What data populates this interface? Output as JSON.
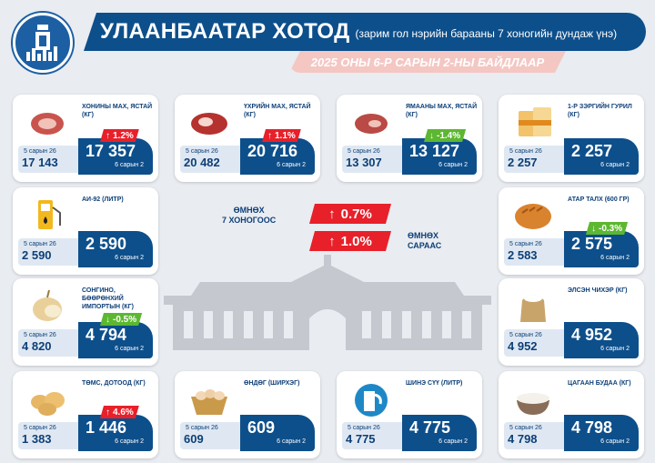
{
  "header": {
    "title": "УЛААНБААТАР ХОТОД",
    "subtitle": "(зарим гол нэрийн барааны 7 хоногийн дундаж үнэ)",
    "date": "2025 ОНЫ 6-Р САРЫН 2-НЫ БАЙДЛААР"
  },
  "center": {
    "week_label": "ӨМНӨХ\n7 ХОНОГООС",
    "week_change": "0.7%",
    "month_label": "ӨМНӨХ\nСАРААС",
    "month_change": "1.0%"
  },
  "colors": {
    "navy": "#0d4f8b",
    "up": "#e8202a",
    "down": "#5cb731",
    "pink": "#f4c7c3"
  },
  "items": [
    {
      "name": "ХОНИНЫ МАХ, ЯСТАЙ (КГ)",
      "icon": "mutton-icon",
      "prev_date": "5 сарын 26",
      "prev_value": "17 143",
      "cur_value": "17 357",
      "cur_date": "6 сарын 2",
      "change": "1.2%",
      "dir": "up"
    },
    {
      "name": "ҮХРИЙН МАХ, ЯСТАЙ (КГ)",
      "icon": "beef-icon",
      "prev_date": "5 сарын 26",
      "prev_value": "20 482",
      "cur_value": "20 716",
      "cur_date": "6 сарын 2",
      "change": "1.1%",
      "dir": "up"
    },
    {
      "name": "ЯМААНЫ МАХ, ЯСТАЙ (КГ)",
      "icon": "goat-meat-icon",
      "prev_date": "5 сарын 26",
      "prev_value": "13 307",
      "cur_value": "13 127",
      "cur_date": "6 сарын 2",
      "change": "-1.4%",
      "dir": "down"
    },
    {
      "name": "1-Р ЗЭРГИЙН ГУРИЛ (КГ)",
      "icon": "flour-icon",
      "prev_date": "5 сарын 26",
      "prev_value": "2 257",
      "cur_value": "2 257",
      "cur_date": "6 сарын 2",
      "change": "",
      "dir": "none"
    },
    {
      "name": "АИ-92 (ЛИТР)",
      "icon": "fuel-pump-icon",
      "prev_date": "5 сарын 26",
      "prev_value": "2 590",
      "cur_value": "2 590",
      "cur_date": "6 сарын 2",
      "change": "",
      "dir": "none"
    },
    {
      "name": "АТАР ТАЛХ (600 ГР)",
      "icon": "bread-icon",
      "prev_date": "5 сарын 26",
      "prev_value": "2 583",
      "cur_value": "2 575",
      "cur_date": "6 сарын 2",
      "change": "-0.3%",
      "dir": "down"
    },
    {
      "name": "СОНГИНО, БӨӨРӨНХИЙ ИМПОРТЫН (КГ)",
      "icon": "onion-icon",
      "prev_date": "5 сарын 26",
      "prev_value": "4 820",
      "cur_value": "4 794",
      "cur_date": "6 сарын 2",
      "change": "-0.5%",
      "dir": "down"
    },
    {
      "name": "ЭЛСЭН ЧИХЭР (КГ)",
      "icon": "sugar-sack-icon",
      "prev_date": "5 сарын 26",
      "prev_value": "4 952",
      "cur_value": "4 952",
      "cur_date": "6 сарын 2",
      "change": "",
      "dir": "none"
    },
    {
      "name": "ТӨМС, ДОТООД (КГ)",
      "icon": "potato-icon",
      "prev_date": "5 сарын 26",
      "prev_value": "1 383",
      "cur_value": "1 446",
      "cur_date": "6 сарын 2",
      "change": "4.6%",
      "dir": "up"
    },
    {
      "name": "ӨНДӨГ (ШИРХЭГ)",
      "icon": "eggs-basket-icon",
      "prev_date": "5 сарын 26",
      "prev_value": "609",
      "cur_value": "609",
      "cur_date": "6 сарын 2",
      "change": "",
      "dir": "none"
    },
    {
      "name": "ШИНЭ СҮҮ (ЛИТР)",
      "icon": "milk-icon",
      "prev_date": "5 сарын 26",
      "prev_value": "4 775",
      "cur_value": "4 775",
      "cur_date": "6 сарын 2",
      "change": "",
      "dir": "none"
    },
    {
      "name": "ЦАГААН БУДАА (КГ)",
      "icon": "rice-bowl-icon",
      "prev_date": "5 сарын 26",
      "prev_value": "4 798",
      "cur_value": "4 798",
      "cur_date": "6 сарын 2",
      "change": "",
      "dir": "none"
    }
  ]
}
